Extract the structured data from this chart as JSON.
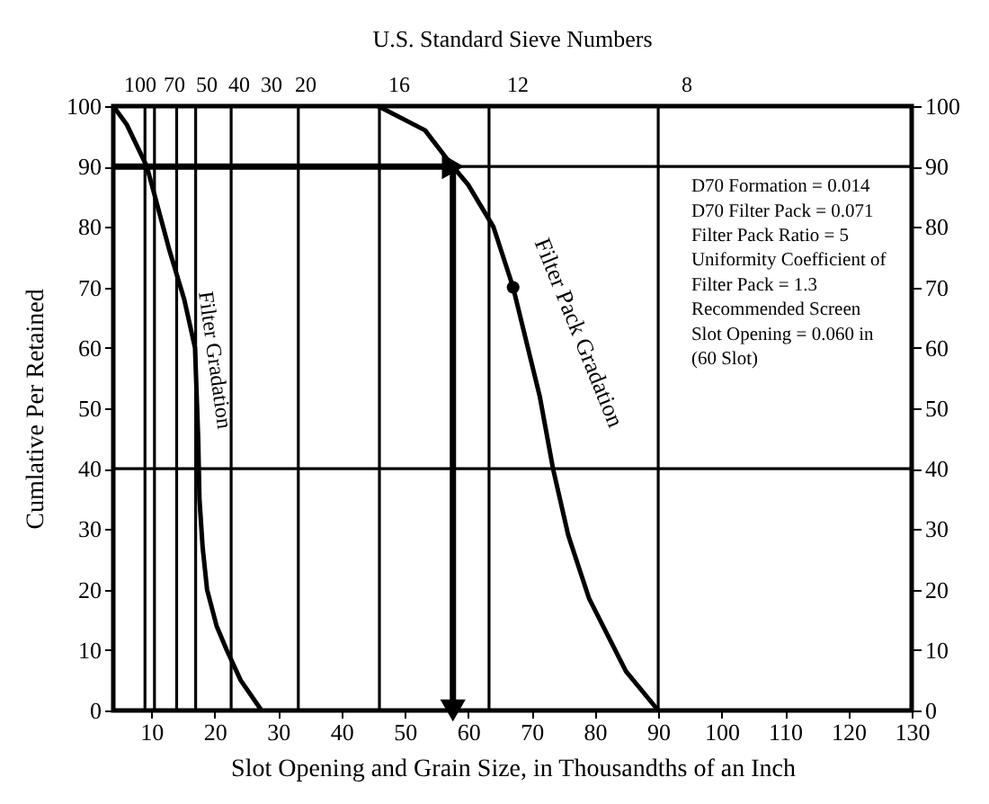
{
  "chart_data": {
    "type": "line",
    "xlabel": "Slot Opening and Grain Size, in Thousandths of an Inch",
    "ylabel": "Cumlative Per Retained",
    "xlim": [
      4,
      130
    ],
    "xticks": [
      10,
      20,
      30,
      40,
      50,
      60,
      70,
      80,
      90,
      100,
      110,
      120,
      130
    ],
    "ylim": [
      0,
      100
    ],
    "yticks": [
      0,
      10,
      20,
      30,
      40,
      50,
      60,
      70,
      80,
      90,
      100
    ],
    "y2lim": [
      0,
      100
    ],
    "y2ticks": [
      0,
      10,
      20,
      30,
      40,
      50,
      60,
      70,
      80,
      90,
      100
    ],
    "series": [
      {
        "color": "#000000",
        "x": [
          4,
          6.1,
          9.3,
          12.9,
          15.2,
          16.9,
          17.4,
          17.6,
          18.1,
          18.8,
          20.3,
          21.9,
          24.1,
          27.4
        ],
        "values": [
          100,
          97,
          90,
          76,
          68,
          60,
          45,
          35,
          27,
          20,
          14,
          10,
          5,
          0
        ]
      },
      {
        "color": "#000000",
        "x": [
          45.8,
          53.2,
          57.6,
          60,
          64,
          67.1,
          69.2,
          71.3,
          73.4,
          75.8,
          79.1,
          84.9,
          90
        ],
        "values": [
          100,
          96,
          90,
          87,
          80,
          70,
          61,
          52,
          40,
          29,
          18.5,
          6.5,
          0
        ]
      },
      {
        "type": "scatter",
        "color": "#000000",
        "marker": "circle",
        "x": [
          67.1
        ],
        "values": [
          70
        ]
      }
    ],
    "ref_lines": [
      {
        "axis": "y",
        "value": 40
      },
      {
        "axis": "y",
        "value": 90
      },
      {
        "axis": "x",
        "value": 9
      },
      {
        "axis": "x",
        "value": 10.5
      },
      {
        "axis": "x",
        "value": 14
      },
      {
        "axis": "x",
        "value": 17
      },
      {
        "axis": "x",
        "value": 22.6
      },
      {
        "axis": "x",
        "value": 33.2
      },
      {
        "axis": "x",
        "value": 46
      },
      {
        "axis": "x",
        "value": 63.3
      },
      {
        "axis": "x",
        "value": 90
      }
    ],
    "annotations": [
      "U.S. Standard Sieve Numbers",
      "100",
      "70",
      "50",
      "40",
      "30",
      "20",
      "16",
      "12",
      "8",
      "Filter Gradation",
      "Filter Pack Gradation",
      "D70 Formation = 0.014\nD70 Filter Pack = 0.071\nFilter Pack Ratio = 5\nUniformity Coefficient of\nFilter Pack = 1.3\nRecommended Screen\nSlot Opening = 0.060 in\n(60 Slot)"
    ]
  }
}
